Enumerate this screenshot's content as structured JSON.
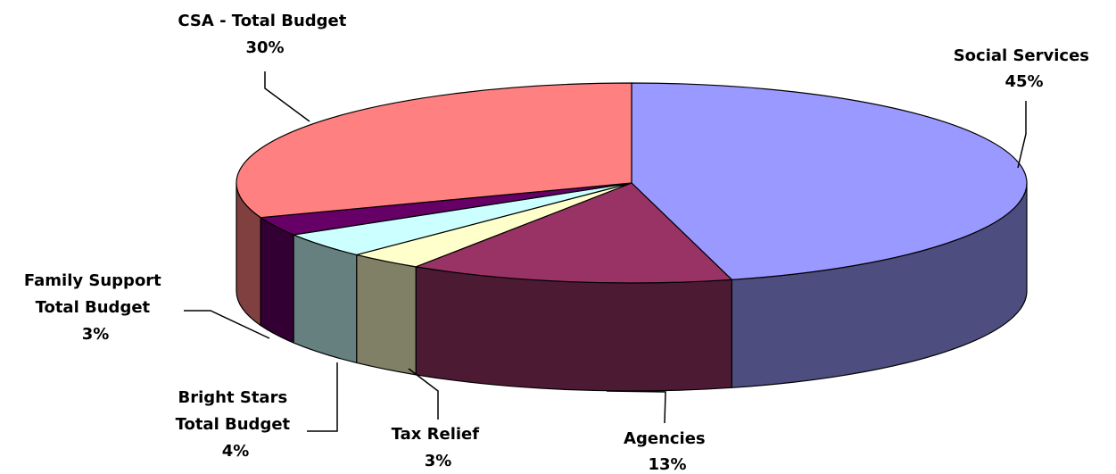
{
  "chart_data": {
    "type": "pie",
    "style": "3d",
    "title": "",
    "slices": [
      {
        "label": "Social Services",
        "label_lines": [
          "Social Services"
        ],
        "pct_text": "45%",
        "value": 45,
        "color": "#9999FF",
        "side_color": "#4D4D80"
      },
      {
        "label": "Agencies",
        "label_lines": [
          "Agencies"
        ],
        "pct_text": "13%",
        "value": 13,
        "color": "#993366",
        "side_color": "#4D1A33"
      },
      {
        "label": "Tax Relief",
        "label_lines": [
          "Tax Relief"
        ],
        "pct_text": "3%",
        "value": 3,
        "color": "#FFFFCC",
        "side_color": "#808066"
      },
      {
        "label": "Bright Stars Total Budget",
        "label_lines": [
          "Bright Stars",
          "Total Budget"
        ],
        "pct_text": "4%",
        "value": 4,
        "color": "#CCFFFF",
        "side_color": "#668080"
      },
      {
        "label": "Family Support Total Budget",
        "label_lines": [
          "Family Support",
          "Total Budget"
        ],
        "pct_text": "3%",
        "value": 3,
        "color": "#660066",
        "side_color": "#330033"
      },
      {
        "label": "CSA - Total Budget",
        "label_lines": [
          "CSA - Total Budget"
        ],
        "pct_text": "30%",
        "value": 30,
        "color": "#FF8080",
        "side_color": "#804040"
      }
    ]
  }
}
